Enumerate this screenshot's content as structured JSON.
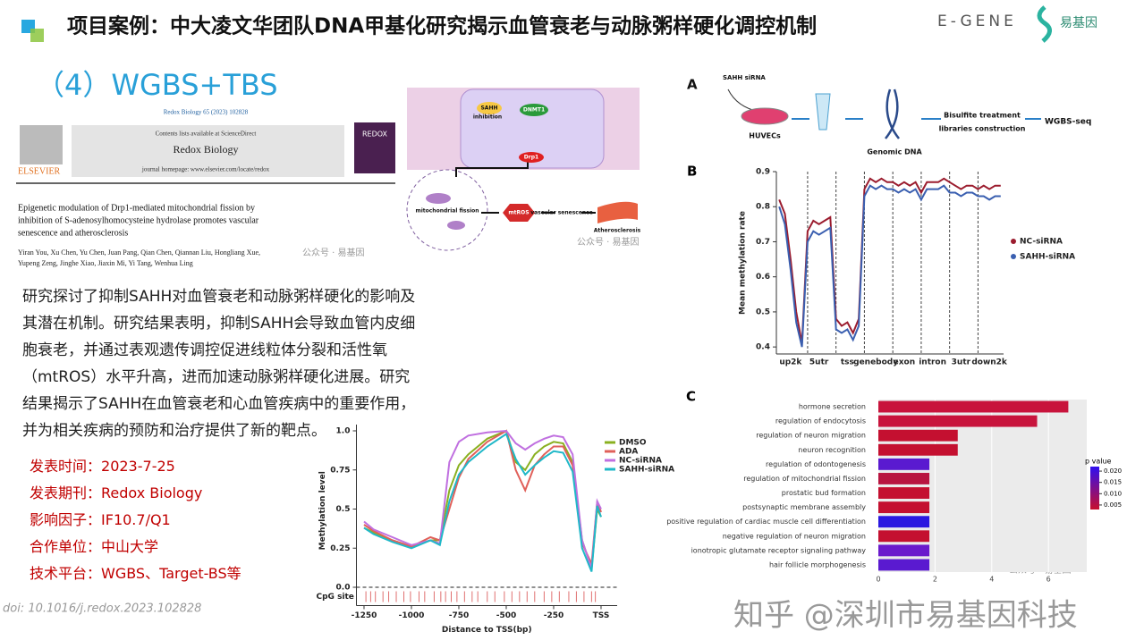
{
  "header": {
    "title": "项目案例：中大凌文华团队DNA甲基化研究揭示血管衰老与动脉粥样硬化调控机制",
    "logo_text": "E-GENE",
    "logo_cn": "易基因"
  },
  "section_title": "（4）WGBS+TBS",
  "paper": {
    "journal_line": "Redox Biology 65 (2023) 102828",
    "contents": "Contents lists available at ScienceDirect",
    "journal": "Redox Biology",
    "homepage": "journal homepage: www.elsevier.com/locate/redox",
    "publisher": "ELSEVIER",
    "cover": "REDOX",
    "title_lines": [
      "Epigenetic modulation of Drp1-mediated mitochondrial fission by",
      "inhibition of S-adenosylhomocysteine hydrolase promotes vascular",
      "senescence and atherosclerosis"
    ],
    "author_lines": [
      "Yiran You, Xu Chen, Yu Chen, Juan Pang, Qian Chen, Qiannan Liu, Hongliang Xue,",
      "Yupeng Zeng, Jinghe Xiao, Jiaxin Mi, Yi Tang, Wenhua Ling"
    ]
  },
  "abstract": {
    "sahh": "SAHH",
    "inhibition": "inhibition",
    "dnmt": "DNMT1",
    "drp1": "Drp1",
    "fission": "mitochondrial fission",
    "ros": "mtROS",
    "senescence": "vascular senescence",
    "athero": "Atherosclerosis"
  },
  "summary": [
    "研究探讨了抑制SAHH对血管衰老和动脉粥样硬化的影响及",
    "其潜在机制。研究结果表明，抑制SAHH会导致血管内皮细",
    "胞衰老，并通过表观遗传调控促进线粒体分裂和活性氧",
    "（mtROS）水平升高，进而加速动脉粥样硬化进展。研究",
    "结果揭示了SAHH在血管衰老和心血管疾病中的重要作用，",
    "并为相关疾病的预防和治疗提供了新的靶点。"
  ],
  "info": [
    {
      "label": "发表时间：",
      "value": "2023-7-25"
    },
    {
      "label": "发表期刊：",
      "value": "Redox Biology"
    },
    {
      "label": "影响因子：",
      "value": "IF10.7/Q1"
    },
    {
      "label": "合作单位：",
      "value": "中山大学"
    },
    {
      "label": "技术平台：",
      "value": "WGBS、Target-BS等"
    }
  ],
  "doi": "doi: 10.1016/j.redox.2023.102828",
  "watermark": "知乎 @深圳市易基因科技",
  "watermarks_small": [
    "公众号 · 易基因",
    "公众号 · 易基因",
    "公众号 · 易基因"
  ],
  "panel_a": {
    "label": "A",
    "sirna": "SAHH siRNA",
    "cells": "HUVECs",
    "dna": "Genomic DNA",
    "bisulfite": "Bisulfite treatment",
    "libraries": "libraries construction",
    "seq": "WGBS-seq"
  },
  "chart_data": [
    {
      "type": "line",
      "panel_label": "B",
      "ylabel": "Mean methylation rate",
      "categories": [
        null,
        null,
        "up2k",
        null,
        null,
        null,
        null,
        "5utr",
        null,
        null,
        null,
        null,
        "tss",
        null,
        null,
        null,
        null,
        "genebody",
        null,
        null,
        null,
        null,
        "exon",
        null,
        null,
        null,
        null,
        "intron",
        null,
        null,
        null,
        null,
        "3utr",
        null,
        null,
        null,
        null,
        "down2k",
        null,
        null
      ],
      "series": [
        {
          "name": "NC-siRNA",
          "color": "#9b1c2e",
          "values": [
            0.82,
            0.78,
            0.65,
            0.5,
            0.41,
            0.73,
            0.76,
            0.75,
            0.76,
            0.77,
            0.48,
            0.46,
            0.47,
            0.44,
            0.48,
            0.85,
            0.88,
            0.87,
            0.88,
            0.87,
            0.87,
            0.86,
            0.87,
            0.86,
            0.87,
            0.84,
            0.87,
            0.87,
            0.87,
            0.88,
            0.87,
            0.86,
            0.85,
            0.86,
            0.86,
            0.85,
            0.86,
            0.85,
            0.86,
            0.86
          ]
        },
        {
          "name": "SAHH-siRNA",
          "color": "#3a5fb0",
          "values": [
            0.8,
            0.75,
            0.62,
            0.47,
            0.4,
            0.7,
            0.73,
            0.72,
            0.73,
            0.74,
            0.45,
            0.44,
            0.45,
            0.42,
            0.46,
            0.83,
            0.86,
            0.85,
            0.86,
            0.85,
            0.85,
            0.84,
            0.85,
            0.84,
            0.85,
            0.82,
            0.85,
            0.85,
            0.85,
            0.86,
            0.84,
            0.84,
            0.83,
            0.84,
            0.84,
            0.83,
            0.83,
            0.82,
            0.83,
            0.83
          ]
        }
      ],
      "ylim": [
        0.38,
        0.9
      ],
      "yticks": [
        0.4,
        0.5,
        0.6,
        0.7,
        0.8,
        0.9
      ],
      "legend": "right",
      "legend_marker": "dot",
      "separators": true
    },
    {
      "type": "bar",
      "orientation": "horizontal",
      "panel_label": "C",
      "categories": [
        "hormone secretion",
        "regulation of endocytosis",
        "regulation of neuron migration",
        "neuron recognition",
        "regulation of odontogenesis",
        "regulation of mitochondrial fission",
        "prostatic bud formation",
        "postsynaptic membrane assembly",
        "positive regulation of cardiac muscle cell differentiation",
        "negative regulation of neuron migration",
        "ionotropic glutamate receptor signaling pathway",
        "hair follicle morphogenesis"
      ],
      "values": [
        6.7,
        5.6,
        2.8,
        2.8,
        1.8,
        1.8,
        1.8,
        1.8,
        1.8,
        1.8,
        1.8,
        1.8
      ],
      "colors": [
        "#c8143c",
        "#c8143c",
        "#c41030",
        "#c41030",
        "#5a1ad0",
        "#b81440",
        "#c41030",
        "#c41030",
        "#2a18e0",
        "#c41030",
        "#6a1acc",
        "#5a1ad0"
      ],
      "xlim": [
        0,
        7.35
      ],
      "xticks": [
        0,
        2,
        4,
        6
      ],
      "colorbar": {
        "title": "p value",
        "lim": [
          0.003,
          0.022
        ],
        "ticks": [
          {
            "value": 0.02,
            "label": "0.020"
          },
          {
            "value": 0.015,
            "label": "0.015"
          },
          {
            "value": 0.01,
            "label": "0.010"
          },
          {
            "value": 0.005,
            "label": "0.005"
          }
        ],
        "colors": [
          "#c8102e",
          "#3010f0"
        ]
      }
    },
    {
      "type": "line",
      "ylabel": "Methylation level",
      "xlabel": "Distance to TSS(bp)",
      "cpg_label": "CpG site",
      "x": [
        -1250,
        -1200,
        -1100,
        -1000,
        -900,
        -850,
        -800,
        -750,
        -700,
        -600,
        -500,
        -450,
        -400,
        -350,
        -300,
        -250,
        -200,
        -150,
        -100,
        -50,
        -20,
        0
      ],
      "series": [
        {
          "name": "DMSO",
          "color": "#8ab020",
          "values": [
            0.38,
            0.35,
            0.3,
            0.26,
            0.3,
            0.3,
            0.62,
            0.78,
            0.85,
            0.95,
            1.0,
            0.8,
            0.75,
            0.85,
            0.9,
            0.93,
            0.92,
            0.8,
            0.3,
            0.12,
            0.5,
            0.45
          ]
        },
        {
          "name": "ADA",
          "color": "#e0605a",
          "values": [
            0.4,
            0.36,
            0.3,
            0.26,
            0.32,
            0.3,
            0.5,
            0.7,
            0.82,
            0.93,
            1.0,
            0.75,
            0.62,
            0.78,
            0.85,
            0.9,
            0.9,
            0.78,
            0.28,
            0.15,
            0.55,
            0.48
          ]
        },
        {
          "name": "NC-siRNA",
          "color": "#c070e0",
          "values": [
            0.42,
            0.37,
            0.32,
            0.27,
            0.3,
            0.28,
            0.8,
            0.93,
            0.97,
            0.99,
            1.0,
            0.92,
            0.88,
            0.92,
            0.95,
            0.97,
            0.96,
            0.85,
            0.3,
            0.12,
            0.55,
            0.5
          ]
        },
        {
          "name": "SAHH-siRNA",
          "color": "#20b8c8",
          "values": [
            0.38,
            0.34,
            0.29,
            0.25,
            0.3,
            0.27,
            0.55,
            0.72,
            0.8,
            0.9,
            0.98,
            0.82,
            0.72,
            0.78,
            0.83,
            0.87,
            0.86,
            0.74,
            0.25,
            0.1,
            0.52,
            0.45
          ]
        }
      ],
      "cpg_sites": [
        -1240,
        -1215,
        -1190,
        -1150,
        -1120,
        -1080,
        -1040,
        -1005,
        -960,
        -930,
        -880,
        -845,
        -820,
        -790,
        -760,
        -720,
        -680,
        -650,
        -600,
        -560,
        -510,
        -470,
        -430,
        -390,
        -350,
        -300,
        -260,
        -220,
        -170,
        -130,
        -90,
        -50,
        -30
      ],
      "xlim": [
        -1290,
        85
      ],
      "xticks": [
        -1250,
        -1000,
        -750,
        -500,
        -250,
        {
          "value": 0,
          "label": "TSS"
        }
      ],
      "ylim": [
        -0.06,
        1.04
      ],
      "yticks": [
        {
          "value": 0,
          "label": "0.0"
        },
        0.25,
        0.5,
        0.75,
        {
          "value": 1,
          "label": "1.0"
        }
      ],
      "baseline_dashed": true,
      "legend": "upper right",
      "legend_marker": "line"
    }
  ]
}
